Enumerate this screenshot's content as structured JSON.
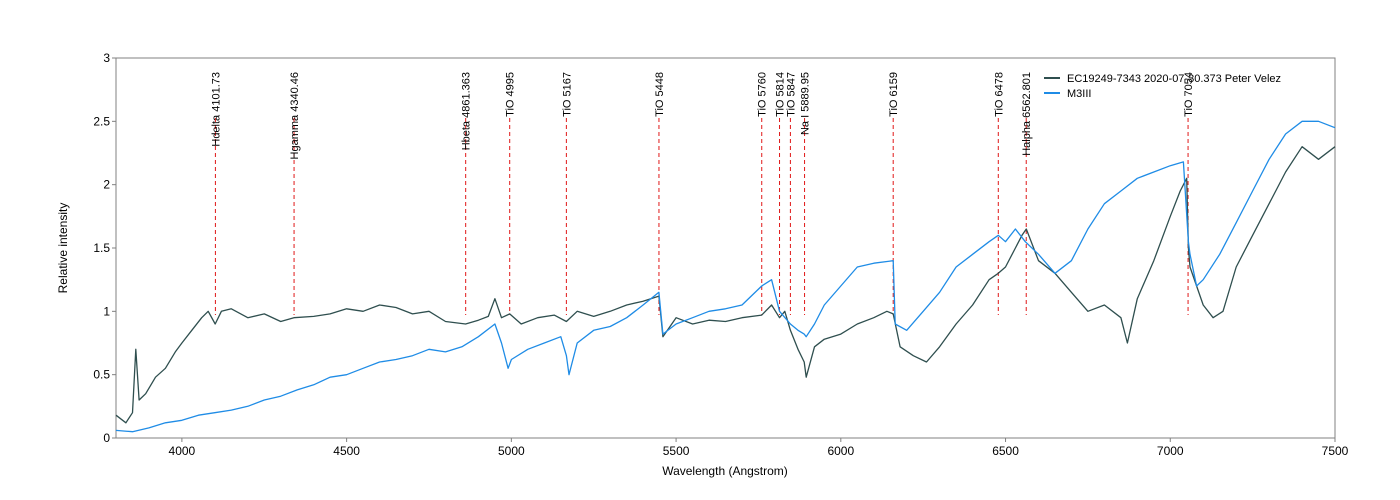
{
  "chart_data": {
    "type": "line",
    "title": "",
    "xlabel": "Wavelength (Angstrom)",
    "ylabel": "Relative intensity",
    "xlim": [
      3800,
      7500
    ],
    "ylim": [
      0,
      3
    ],
    "x_ticks": [
      4000,
      4500,
      5000,
      5500,
      6000,
      6500,
      7000,
      7500
    ],
    "y_ticks": [
      0,
      0.5,
      1,
      1.5,
      2,
      2.5,
      3
    ],
    "x_tick_labels": [
      "4000",
      "4500",
      "5000",
      "5500",
      "6000",
      "6500",
      "7000",
      "7500"
    ],
    "y_tick_labels": [
      "0",
      "0.5",
      "1",
      "1.5",
      "2",
      "2.5",
      "3"
    ],
    "grid": false,
    "legend_position": "top-right",
    "series": [
      {
        "name": "EC19249-7343  2020-07-30.373  Peter Velez",
        "color": "#2f4f4f",
        "x": [
          3800,
          3830,
          3850,
          3860,
          3870,
          3890,
          3920,
          3950,
          3980,
          4000,
          4030,
          4060,
          4080,
          4101,
          4120,
          4150,
          4200,
          4250,
          4300,
          4340,
          4400,
          4450,
          4500,
          4550,
          4600,
          4650,
          4700,
          4750,
          4800,
          4861,
          4900,
          4930,
          4950,
          4970,
          4995,
          5030,
          5080,
          5130,
          5167,
          5200,
          5250,
          5300,
          5350,
          5400,
          5448,
          5460,
          5500,
          5550,
          5600,
          5650,
          5700,
          5760,
          5790,
          5814,
          5830,
          5847,
          5870,
          5889,
          5895,
          5920,
          5950,
          6000,
          6050,
          6100,
          6140,
          6159,
          6180,
          6220,
          6260,
          6300,
          6350,
          6400,
          6450,
          6478,
          6500,
          6530,
          6550,
          6563,
          6600,
          6650,
          6700,
          6750,
          6800,
          6850,
          6870,
          6900,
          6950,
          7000,
          7030,
          7050,
          7055,
          7060,
          7080,
          7100,
          7130,
          7160,
          7200,
          7250,
          7300,
          7350,
          7400,
          7450,
          7500
        ],
        "y": [
          0.18,
          0.12,
          0.2,
          0.7,
          0.3,
          0.35,
          0.48,
          0.55,
          0.68,
          0.75,
          0.85,
          0.95,
          1.0,
          0.9,
          1.0,
          1.02,
          0.95,
          0.98,
          0.92,
          0.95,
          0.96,
          0.98,
          1.02,
          1.0,
          1.05,
          1.03,
          0.98,
          1.0,
          0.92,
          0.9,
          0.93,
          0.96,
          1.1,
          0.95,
          0.98,
          0.9,
          0.95,
          0.97,
          0.92,
          1.0,
          0.96,
          1.0,
          1.05,
          1.08,
          1.12,
          0.8,
          0.95,
          0.9,
          0.93,
          0.92,
          0.95,
          0.97,
          1.05,
          0.95,
          1.0,
          0.85,
          0.7,
          0.6,
          0.48,
          0.72,
          0.78,
          0.82,
          0.9,
          0.95,
          1.0,
          0.98,
          0.72,
          0.65,
          0.6,
          0.72,
          0.9,
          1.05,
          1.25,
          1.3,
          1.35,
          1.5,
          1.6,
          1.65,
          1.4,
          1.3,
          1.15,
          1.0,
          1.05,
          0.95,
          0.75,
          1.1,
          1.4,
          1.75,
          1.95,
          2.05,
          1.5,
          1.35,
          1.2,
          1.05,
          0.95,
          1.0,
          1.35,
          1.6,
          1.85,
          2.1,
          2.3,
          2.2,
          2.3
        ]
      },
      {
        "name": "M3III",
        "color": "#1f8ce6",
        "x": [
          3800,
          3850,
          3900,
          3950,
          4000,
          4050,
          4100,
          4150,
          4200,
          4250,
          4300,
          4350,
          4400,
          4450,
          4500,
          4550,
          4600,
          4650,
          4700,
          4750,
          4800,
          4850,
          4900,
          4950,
          4970,
          4990,
          5000,
          5050,
          5100,
          5150,
          5167,
          5175,
          5200,
          5250,
          5300,
          5350,
          5400,
          5448,
          5460,
          5500,
          5550,
          5600,
          5650,
          5700,
          5760,
          5790,
          5814,
          5847,
          5870,
          5889,
          5895,
          5920,
          5950,
          6000,
          6050,
          6100,
          6159,
          6165,
          6200,
          6250,
          6300,
          6350,
          6400,
          6450,
          6478,
          6500,
          6530,
          6560,
          6600,
          6650,
          6700,
          6750,
          6800,
          6850,
          6900,
          6950,
          7000,
          7040,
          7055,
          7060,
          7080,
          7100,
          7150,
          7200,
          7250,
          7300,
          7350,
          7400,
          7450,
          7500
        ],
        "y": [
          0.06,
          0.05,
          0.08,
          0.12,
          0.14,
          0.18,
          0.2,
          0.22,
          0.25,
          0.3,
          0.33,
          0.38,
          0.42,
          0.48,
          0.5,
          0.55,
          0.6,
          0.62,
          0.65,
          0.7,
          0.68,
          0.72,
          0.8,
          0.9,
          0.75,
          0.55,
          0.62,
          0.7,
          0.75,
          0.8,
          0.65,
          0.5,
          0.75,
          0.85,
          0.88,
          0.95,
          1.05,
          1.15,
          0.82,
          0.9,
          0.95,
          1.0,
          1.02,
          1.05,
          1.2,
          1.25,
          1.0,
          0.9,
          0.85,
          0.82,
          0.8,
          0.9,
          1.05,
          1.2,
          1.35,
          1.38,
          1.4,
          0.9,
          0.85,
          1.0,
          1.15,
          1.35,
          1.45,
          1.55,
          1.6,
          1.55,
          1.65,
          1.55,
          1.45,
          1.3,
          1.4,
          1.65,
          1.85,
          1.95,
          2.05,
          2.1,
          2.15,
          2.18,
          1.55,
          1.45,
          1.2,
          1.25,
          1.45,
          1.7,
          1.95,
          2.2,
          2.4,
          2.5,
          2.5,
          2.45
        ]
      }
    ],
    "annotations": [
      {
        "label": "Hdelta 4101.73",
        "x": 4101.73
      },
      {
        "label": "Hgamma 4340.46",
        "x": 4340.46
      },
      {
        "label": "Hbeta 4861.363",
        "x": 4861.363
      },
      {
        "label": "TiO 4995",
        "x": 4995
      },
      {
        "label": "TiO 5167",
        "x": 5167
      },
      {
        "label": "TiO 5448",
        "x": 5448
      },
      {
        "label": "TiO 5760",
        "x": 5760
      },
      {
        "label": "TiO 5814",
        "x": 5814
      },
      {
        "label": "TiO 5847",
        "x": 5847
      },
      {
        "label": "Na I 5889.95",
        "x": 5889.95
      },
      {
        "label": "TiO 6159",
        "x": 6159
      },
      {
        "label": "TiO 6478",
        "x": 6478
      },
      {
        "label": "Halpha 6562.801",
        "x": 6562.801
      },
      {
        "label": "TiO 7054",
        "x": 7054
      }
    ]
  }
}
